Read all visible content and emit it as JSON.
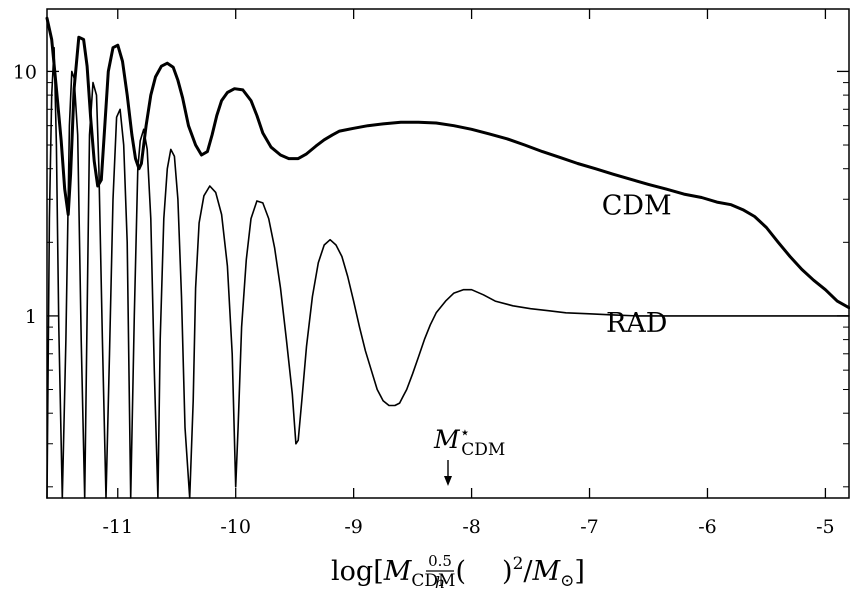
{
  "chart_data": {
    "type": "line",
    "xlabel": "log[M_CDM((0.5)/h)^2/M_⊙]",
    "xlabel_parts": {
      "lead": "log[",
      "m": "M",
      "m_sub": "CDM",
      "frac_num": "0.5",
      "frac_den": "h",
      "exp": "2",
      "slash": "/",
      "msun": "M",
      "msun_sub": "⊙",
      "close": "]"
    },
    "ylabel": "",
    "xlim": [
      -11.6,
      -4.8
    ],
    "ylim": [
      0.18,
      18
    ],
    "yscale": "log",
    "x_ticks": [
      -11,
      -10,
      -9,
      -8,
      -7,
      -6,
      -5
    ],
    "x_tick_labels": [
      "-11",
      "-10",
      "-9",
      "-8",
      "-7",
      "-6",
      "-5"
    ],
    "y_ticks": [
      1,
      10
    ],
    "y_tick_labels": [
      "1",
      "10"
    ],
    "grid": false,
    "series": [
      {
        "name": "CDM",
        "style": "thick",
        "x": [
          -11.6,
          -11.56,
          -11.52,
          -11.48,
          -11.45,
          -11.42,
          -11.4,
          -11.37,
          -11.33,
          -11.29,
          -11.26,
          -11.23,
          -11.2,
          -11.17,
          -11.14,
          -11.11,
          -11.08,
          -11.04,
          -11.0,
          -10.96,
          -10.92,
          -10.88,
          -10.85,
          -10.82,
          -10.8,
          -10.78,
          -10.76,
          -10.72,
          -10.68,
          -10.63,
          -10.58,
          -10.53,
          -10.49,
          -10.45,
          -10.4,
          -10.34,
          -10.29,
          -10.24,
          -10.2,
          -10.16,
          -10.12,
          -10.07,
          -10.01,
          -9.94,
          -9.87,
          -9.82,
          -9.77,
          -9.7,
          -9.62,
          -9.55,
          -9.47,
          -9.4,
          -9.32,
          -9.25,
          -9.18,
          -9.12,
          -9.0,
          -8.88,
          -8.75,
          -8.6,
          -8.45,
          -8.3,
          -8.15,
          -8.0,
          -7.85,
          -7.7,
          -7.55,
          -7.4,
          -7.25,
          -7.1,
          -6.95,
          -6.8,
          -6.65,
          -6.5,
          -6.35,
          -6.2,
          -6.05,
          -5.92,
          -5.8,
          -5.7,
          -5.6,
          -5.5,
          -5.4,
          -5.3,
          -5.2,
          -5.1,
          -5.0,
          -4.9,
          -4.8
        ],
        "y": [
          16.5,
          13.5,
          8.5,
          5.2,
          3.3,
          2.6,
          3.8,
          8.5,
          13.8,
          13.5,
          10.5,
          6.5,
          4.3,
          3.4,
          3.6,
          6.0,
          10.0,
          12.5,
          12.8,
          11.0,
          8.0,
          5.5,
          4.4,
          4.0,
          4.2,
          5.0,
          6.0,
          8.0,
          9.5,
          10.5,
          10.8,
          10.4,
          9.2,
          7.8,
          6.0,
          5.0,
          4.55,
          4.7,
          5.5,
          6.6,
          7.6,
          8.2,
          8.5,
          8.4,
          7.6,
          6.6,
          5.6,
          4.9,
          4.55,
          4.4,
          4.4,
          4.6,
          4.95,
          5.25,
          5.5,
          5.7,
          5.85,
          6.0,
          6.1,
          6.2,
          6.2,
          6.15,
          6.0,
          5.8,
          5.55,
          5.3,
          5.0,
          4.7,
          4.45,
          4.2,
          4.0,
          3.8,
          3.62,
          3.45,
          3.3,
          3.15,
          3.05,
          2.92,
          2.85,
          2.72,
          2.55,
          2.3,
          2.0,
          1.75,
          1.55,
          1.4,
          1.28,
          1.15,
          1.08
        ]
      },
      {
        "name": "RAD",
        "style": "thin",
        "x": [
          -11.6,
          -11.58,
          -11.56,
          -11.54,
          -11.52,
          -11.5,
          -11.47,
          -11.44,
          -11.41,
          -11.39,
          -11.37,
          -11.34,
          -11.31,
          -11.28,
          -11.26,
          -11.24,
          -11.21,
          -11.18,
          -11.16,
          -11.13,
          -11.1,
          -11.07,
          -11.04,
          -11.01,
          -10.98,
          -10.95,
          -10.92,
          -10.89,
          -10.86,
          -10.83,
          -10.81,
          -10.78,
          -10.75,
          -10.72,
          -10.69,
          -10.66,
          -10.64,
          -10.61,
          -10.58,
          -10.55,
          -10.52,
          -10.49,
          -10.46,
          -10.43,
          -10.39,
          -10.36,
          -10.34,
          -10.31,
          -10.27,
          -10.22,
          -10.17,
          -10.12,
          -10.07,
          -10.03,
          -10.0,
          -9.98,
          -9.95,
          -9.91,
          -9.87,
          -9.82,
          -9.77,
          -9.72,
          -9.67,
          -9.62,
          -9.57,
          -9.52,
          -9.49,
          -9.47,
          -9.44,
          -9.4,
          -9.35,
          -9.3,
          -9.25,
          -9.2,
          -9.15,
          -9.1,
          -9.05,
          -9.0,
          -8.95,
          -8.9,
          -8.85,
          -8.8,
          -8.75,
          -8.7,
          -8.65,
          -8.61,
          -8.58,
          -8.55,
          -8.5,
          -8.45,
          -8.4,
          -8.35,
          -8.3,
          -8.22,
          -8.15,
          -8.07,
          -8.0,
          -7.9,
          -7.8,
          -7.65,
          -7.5,
          -7.35,
          -7.2,
          -7.0,
          -6.8,
          -6.6,
          -6.4,
          -6.2,
          -6.0,
          -5.8,
          -5.6,
          -5.4,
          -5.2,
          -5.0,
          -4.8
        ],
        "y": [
          0.18,
          2.5,
          8.0,
          12.5,
          5.0,
          0.9,
          0.18,
          0.8,
          6.0,
          10.0,
          9.4,
          5.5,
          0.8,
          0.18,
          1.0,
          5.5,
          9.0,
          8.0,
          4.0,
          0.8,
          0.18,
          0.7,
          3.0,
          6.5,
          7.0,
          5.0,
          2.0,
          0.18,
          1.0,
          4.0,
          5.2,
          5.8,
          4.8,
          2.5,
          0.6,
          0.18,
          0.8,
          2.5,
          4.0,
          4.8,
          4.5,
          3.0,
          1.2,
          0.35,
          0.18,
          0.45,
          1.3,
          2.4,
          3.1,
          3.4,
          3.2,
          2.6,
          1.6,
          0.7,
          0.2,
          0.35,
          0.9,
          1.7,
          2.5,
          2.95,
          2.9,
          2.5,
          1.9,
          1.3,
          0.8,
          0.48,
          0.3,
          0.31,
          0.45,
          0.75,
          1.2,
          1.65,
          1.95,
          2.05,
          1.95,
          1.75,
          1.45,
          1.15,
          0.9,
          0.72,
          0.6,
          0.5,
          0.45,
          0.43,
          0.43,
          0.44,
          0.47,
          0.5,
          0.58,
          0.68,
          0.8,
          0.92,
          1.03,
          1.15,
          1.24,
          1.28,
          1.28,
          1.22,
          1.15,
          1.1,
          1.07,
          1.05,
          1.03,
          1.02,
          1.01,
          1.0,
          1.0,
          1.0,
          1.0,
          1.0,
          1.0,
          1.0,
          1.0,
          1.0,
          1.0
        ]
      }
    ],
    "series_labels": [
      {
        "text": "CDM",
        "x": -6.6,
        "y": 2.6
      },
      {
        "text": "RAD",
        "x": -6.6,
        "y": 0.86
      }
    ],
    "annotations": [
      {
        "text": "M",
        "sup": "⋆",
        "sub": "CDM",
        "x": -8.2,
        "arrow": "down"
      }
    ]
  }
}
